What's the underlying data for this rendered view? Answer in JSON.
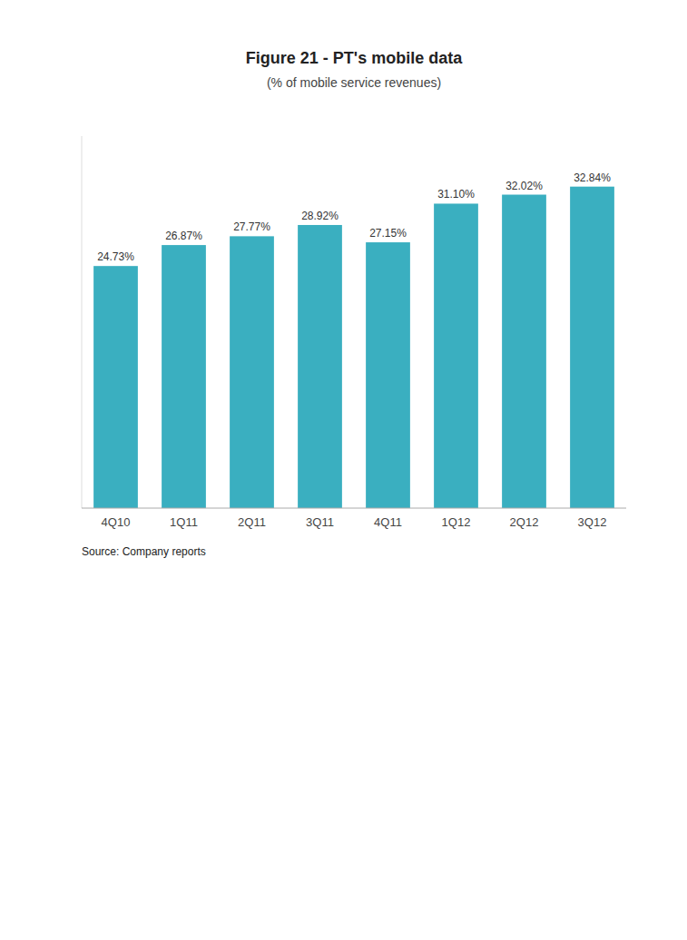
{
  "chart_data": {
    "type": "bar",
    "title": "Figure 21 - PT's mobile data",
    "subtitle": "(% of mobile service revenues)",
    "annotations": [
      "Source: Company reports"
    ],
    "categories": [
      "4Q10",
      "1Q11",
      "2Q11",
      "3Q11",
      "4Q11",
      "1Q12",
      "2Q12",
      "3Q12"
    ],
    "values": [
      24.73,
      26.87,
      27.77,
      28.92,
      27.15,
      31.1,
      32.02,
      32.84
    ],
    "value_labels": [
      "24.73%",
      "26.87%",
      "27.77%",
      "28.92%",
      "27.15%",
      "31.10%",
      "32.02%",
      "32.84%"
    ],
    "color": "#3aafc0",
    "ylim": [
      0,
      38
    ],
    "data_labels": true,
    "tick_labels": "x",
    "grid": false
  }
}
